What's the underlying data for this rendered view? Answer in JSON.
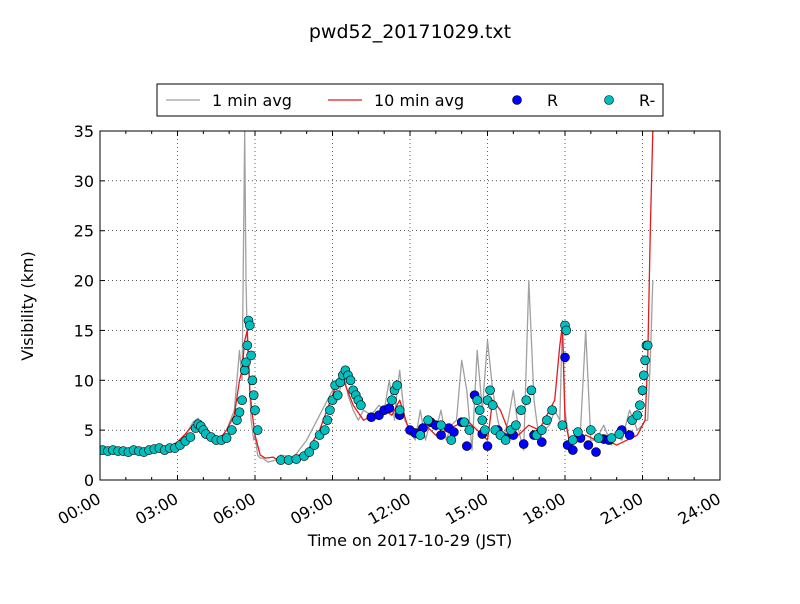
{
  "chart_data": {
    "type": "line",
    "title": "pwd52_20171029.txt",
    "xlabel": "Time on 2017-10-29 (JST)",
    "ylabel": "Visibility (km)",
    "xlim_hours": [
      0,
      24
    ],
    "ylim": [
      0,
      35
    ],
    "x_ticks": [
      "00:00",
      "03:00",
      "06:00",
      "09:00",
      "12:00",
      "15:00",
      "18:00",
      "21:00",
      "24:00"
    ],
    "x_tick_hours": [
      0,
      3,
      6,
      9,
      12,
      15,
      18,
      21,
      24
    ],
    "y_ticks": [
      0,
      5,
      10,
      15,
      20,
      25,
      30,
      35
    ],
    "grid": true,
    "legend_position": "top-center",
    "series": [
      {
        "name": "1 min avg",
        "kind": "line",
        "color": "#a0a0a0",
        "x": [
          0,
          0.5,
          1,
          1.5,
          2,
          2.5,
          3,
          3.3,
          3.6,
          3.8,
          4,
          4.3,
          4.6,
          4.9,
          5.2,
          5.4,
          5.5,
          5.6,
          5.65,
          5.7,
          5.75,
          5.8,
          5.85,
          5.9,
          5.95,
          6.0,
          6.1,
          6.2,
          6.3,
          6.5,
          6.8,
          7,
          7.5,
          8,
          8.5,
          9,
          9.2,
          9.4,
          9.5,
          9.6,
          9.8,
          10,
          10.2,
          10.5,
          10.8,
          11,
          11.2,
          11.4,
          11.5,
          11.6,
          11.8,
          12,
          12.2,
          12.4,
          12.6,
          12.8,
          13,
          13.2,
          13.4,
          13.6,
          13.8,
          14,
          14.2,
          14.4,
          14.6,
          14.8,
          15,
          15.2,
          15.4,
          15.6,
          15.8,
          16,
          16.2,
          16.4,
          16.6,
          16.8,
          17,
          17.2,
          17.4,
          17.6,
          17.8,
          17.9,
          18,
          18.2,
          18.4,
          18.6,
          18.8,
          19,
          19.2,
          19.5,
          19.8,
          20,
          20.2,
          20.5,
          20.8,
          21,
          21.1,
          21.2,
          21.3,
          21.4
        ],
        "y": [
          3,
          2.8,
          3,
          2.8,
          3.2,
          3,
          3.8,
          4.5,
          5.8,
          6.2,
          4.5,
          4,
          4,
          5,
          7,
          13,
          10,
          35,
          20,
          14,
          12,
          9,
          6,
          5,
          4,
          4.5,
          2.5,
          2.2,
          2.2,
          1.8,
          2,
          2.5,
          2.3,
          4,
          6.5,
          9,
          8,
          10.5,
          9.8,
          8.5,
          7,
          6,
          7,
          6.5,
          7.5,
          7,
          10,
          6,
          9,
          11,
          6,
          5,
          4,
          7,
          4,
          6,
          5,
          7,
          4,
          5.5,
          6,
          12,
          9,
          3,
          13,
          7,
          14,
          9,
          6,
          4,
          6,
          9,
          5,
          3,
          20,
          8,
          4,
          5,
          5.5,
          7,
          6,
          16,
          7,
          3,
          4,
          5,
          15,
          4,
          4,
          5.5,
          3.5,
          4.5,
          4,
          7,
          5,
          5.5,
          6,
          6,
          12,
          20
        ]
      },
      {
        "name": "10 min avg",
        "kind": "line",
        "color": "#e41a1c",
        "x": [
          0,
          0.5,
          1,
          1.5,
          2,
          2.5,
          3,
          3.3,
          3.6,
          3.9,
          4.2,
          4.6,
          4.9,
          5.2,
          5.4,
          5.5,
          5.6,
          5.7,
          5.8,
          5.9,
          6.0,
          6.2,
          6.4,
          6.7,
          7,
          7.3,
          7.6,
          8,
          8.5,
          9,
          9.2,
          9.4,
          9.5,
          9.8,
          10.2,
          10.6,
          11,
          11.3,
          11.6,
          11.9,
          12.2,
          12.6,
          13,
          13.4,
          13.8,
          14.2,
          14.6,
          15,
          15.2,
          15.5,
          15.8,
          16.2,
          16.6,
          17,
          17.3,
          17.6,
          17.8,
          17.9,
          18,
          18.2,
          18.5,
          18.8,
          19.2,
          19.6,
          20,
          20.4,
          20.8,
          21.1,
          21.2,
          21.3,
          21.4
        ],
        "y": [
          2.8,
          2.8,
          2.9,
          2.9,
          3.1,
          3.1,
          3.8,
          4.6,
          5.5,
          5,
          4.2,
          4,
          5,
          6.5,
          10,
          11,
          14,
          15,
          9,
          6.5,
          4.5,
          2.5,
          2.2,
          2.3,
          1.8,
          2,
          2.4,
          2.8,
          5,
          8.5,
          10,
          10.5,
          9.5,
          7.5,
          6,
          6.5,
          7,
          6.5,
          8,
          5.5,
          5,
          5.5,
          4.5,
          5,
          5.5,
          6,
          5,
          4,
          8,
          7,
          5,
          4.5,
          5.5,
          5,
          6.5,
          8,
          13.5,
          15.5,
          6,
          3.5,
          4,
          4.5,
          4,
          4,
          3.5,
          4,
          4.5,
          6,
          12,
          25,
          35
        ]
      },
      {
        "name": "R",
        "kind": "scatter",
        "color": "#0000ff",
        "x": [
          10.5,
          10.8,
          11.0,
          11.2,
          11.6,
          12.0,
          12.2,
          12.5,
          12.8,
          13.0,
          13.2,
          13.5,
          13.7,
          14.0,
          14.2,
          14.5,
          14.8,
          15.0,
          15.4,
          15.7,
          16.0,
          16.4,
          16.8,
          17.1,
          18.0,
          18.1,
          18.3,
          18.6,
          18.9,
          19.2,
          19.5,
          19.7,
          20.2,
          20.5
        ],
        "y": [
          6.3,
          6.5,
          7.0,
          7.2,
          6.5,
          5.0,
          4.7,
          5.2,
          5.8,
          5.5,
          4.5,
          5.2,
          4.8,
          5.8,
          3.4,
          8.5,
          4.6,
          3.4,
          5.0,
          4.2,
          4.5,
          3.6,
          4.5,
          3.8,
          12.3,
          3.5,
          3.0,
          4.2,
          3.5,
          2.8,
          4.1,
          4.0,
          5.0,
          4.5
        ]
      },
      {
        "name": "R-",
        "kind": "scatter",
        "color": "#00bfbf",
        "x": [
          0.1,
          0.3,
          0.5,
          0.7,
          0.9,
          1.1,
          1.3,
          1.5,
          1.7,
          1.9,
          2.1,
          2.3,
          2.5,
          2.7,
          2.9,
          3.1,
          3.3,
          3.5,
          3.7,
          3.8,
          3.9,
          4.0,
          4.1,
          4.3,
          4.5,
          4.7,
          4.9,
          5.1,
          5.3,
          5.4,
          5.5,
          5.6,
          5.65,
          5.7,
          5.75,
          5.8,
          5.85,
          5.9,
          5.95,
          6.0,
          6.1,
          7.0,
          7.3,
          7.6,
          7.9,
          8.1,
          8.3,
          8.5,
          8.7,
          8.8,
          8.9,
          9.0,
          9.1,
          9.2,
          9.3,
          9.4,
          9.5,
          9.6,
          9.7,
          9.8,
          9.9,
          10.0,
          10.1,
          11.3,
          11.4,
          11.5,
          11.6,
          12.4,
          12.7,
          13.2,
          13.6,
          14.1,
          14.3,
          14.6,
          14.7,
          14.8,
          14.9,
          15.0,
          15.1,
          15.2,
          15.3,
          15.5,
          15.7,
          15.9,
          16.1,
          16.3,
          16.5,
          16.7,
          16.9,
          17.1,
          17.3,
          17.5,
          17.9,
          18.0,
          18.05,
          18.3,
          18.5,
          19.0,
          19.3,
          19.8,
          20.1,
          20.6,
          20.8,
          20.9,
          21.0,
          21.05,
          21.1,
          21.15,
          21.2
        ],
        "y": [
          3.0,
          2.9,
          3.0,
          2.9,
          2.9,
          2.8,
          3.0,
          2.9,
          2.8,
          3.0,
          3.1,
          3.2,
          3.0,
          3.2,
          3.2,
          3.5,
          3.9,
          4.3,
          5.2,
          5.6,
          5.4,
          5.0,
          4.6,
          4.3,
          4.0,
          4.0,
          4.2,
          5.0,
          6.0,
          6.8,
          8.0,
          11.0,
          11.8,
          13.5,
          16.0,
          15.5,
          12.5,
          10.0,
          8.5,
          7.0,
          5.0,
          2.0,
          2.0,
          2.1,
          2.4,
          2.8,
          3.5,
          4.5,
          5.0,
          6.0,
          7.0,
          8.0,
          9.5,
          8.5,
          9.8,
          10.5,
          11.0,
          10.5,
          10.0,
          9.0,
          8.5,
          8.0,
          7.5,
          8.0,
          9.0,
          9.5,
          7.0,
          4.5,
          6.0,
          5.5,
          4.0,
          5.8,
          5.0,
          8.0,
          7.0,
          6.0,
          5.0,
          8.0,
          9.0,
          7.5,
          5.0,
          4.5,
          4.0,
          5.0,
          5.5,
          7.0,
          8.0,
          9.0,
          4.5,
          5.0,
          6.0,
          7.0,
          5.5,
          15.5,
          15.0,
          4.0,
          4.8,
          5.0,
          4.2,
          4.2,
          4.6,
          6.0,
          6.5,
          7.5,
          9.0,
          10.5,
          12.0,
          13.5,
          13.5
        ]
      }
    ]
  },
  "legend": {
    "items": [
      {
        "label": "1 min avg",
        "marker": "line",
        "color": "#a0a0a0"
      },
      {
        "label": "10 min avg",
        "marker": "line",
        "color": "#e41a1c"
      },
      {
        "label": "R",
        "marker": "dot",
        "color": "#0000ff"
      },
      {
        "label": "R-",
        "marker": "dot",
        "color": "#00bfbf"
      }
    ]
  }
}
